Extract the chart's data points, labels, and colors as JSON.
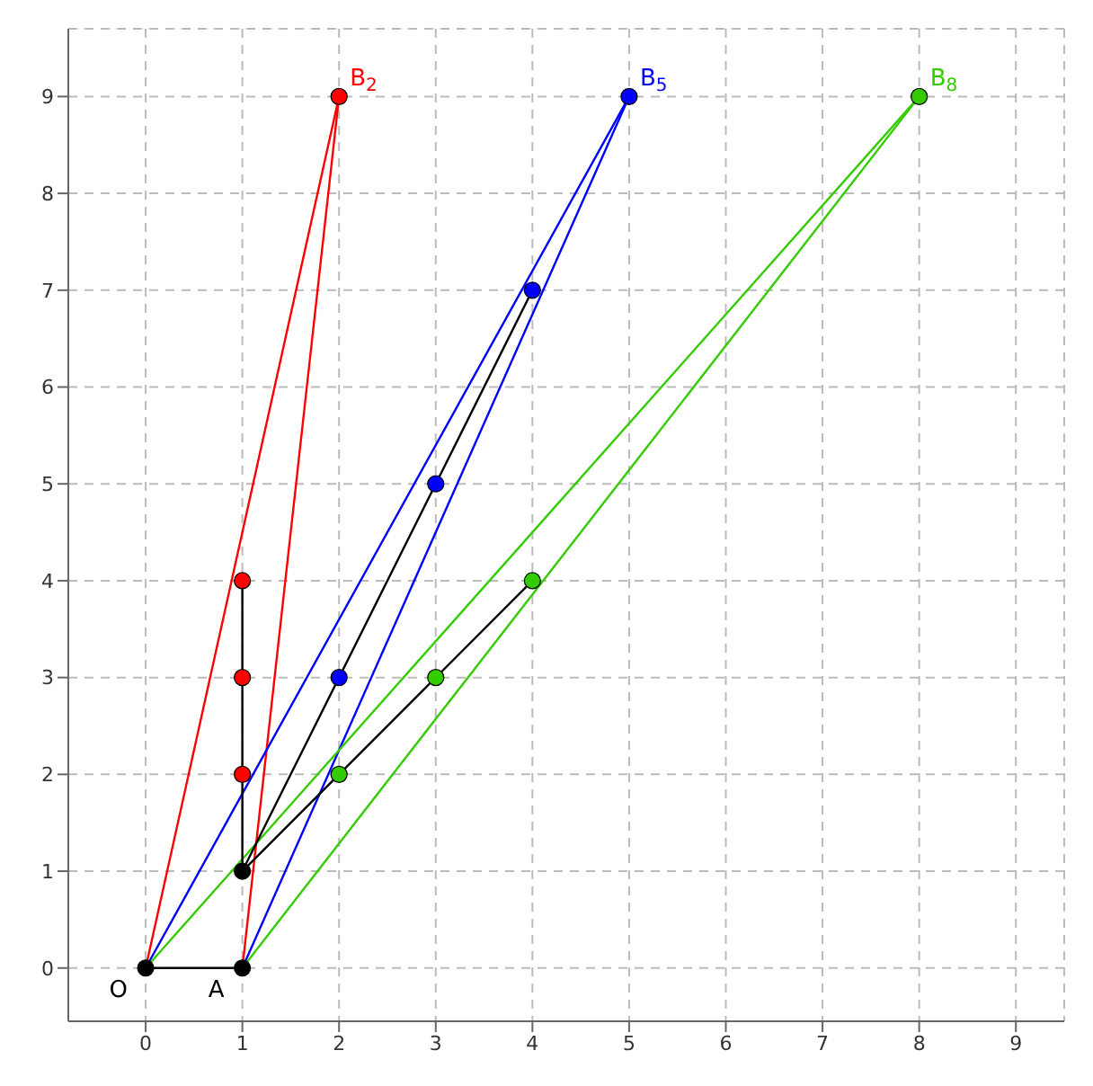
{
  "chart_data": {
    "type": "line",
    "xlim": [
      -0.8,
      9.5
    ],
    "ylim": [
      -0.55,
      9.7
    ],
    "xticks": [
      0,
      1,
      2,
      3,
      4,
      5,
      6,
      7,
      8,
      9
    ],
    "yticks": [
      0,
      1,
      2,
      3,
      4,
      5,
      6,
      7,
      8,
      9
    ],
    "grid": true,
    "marker": "circle",
    "series": [
      {
        "marker": "none",
        "color": "#ff0000",
        "x": [
          0,
          2
        ],
        "values": [
          0,
          9
        ]
      },
      {
        "marker": "none",
        "color": "#ff0000",
        "x": [
          1,
          2
        ],
        "values": [
          0,
          9
        ]
      },
      {
        "marker": "none",
        "color": "#0000ff",
        "x": [
          0,
          5
        ],
        "values": [
          0,
          9
        ]
      },
      {
        "marker": "none",
        "color": "#0000ff",
        "x": [
          1,
          5
        ],
        "values": [
          0,
          9
        ]
      },
      {
        "marker": "none",
        "color": "#33cc00",
        "x": [
          0,
          8
        ],
        "values": [
          0,
          9
        ]
      },
      {
        "marker": "none",
        "color": "#33cc00",
        "x": [
          1,
          8
        ],
        "values": [
          0,
          9
        ]
      },
      {
        "marker": "none",
        "color": "#000000",
        "x": [
          1,
          1
        ],
        "values": [
          1,
          4
        ]
      },
      {
        "marker": "none",
        "color": "#000000",
        "x": [
          1,
          4
        ],
        "values": [
          1,
          7
        ]
      },
      {
        "marker": "none",
        "color": "#000000",
        "x": [
          1,
          4
        ],
        "values": [
          1,
          4
        ]
      },
      {
        "marker": "none",
        "color": "#000000",
        "x": [
          0,
          1
        ],
        "values": [
          0,
          0
        ]
      },
      {
        "type": "scatter",
        "color": "#ff0000",
        "x": [
          1,
          1,
          1,
          2
        ],
        "values": [
          2,
          3,
          4,
          9
        ]
      },
      {
        "type": "scatter",
        "color": "#0000ff",
        "x": [
          2,
          3,
          4,
          5
        ],
        "values": [
          3,
          5,
          7,
          9
        ]
      },
      {
        "type": "scatter",
        "color": "#33cc00",
        "x": [
          2,
          3,
          4,
          8
        ],
        "values": [
          2,
          3,
          4,
          9
        ]
      },
      {
        "type": "scatter",
        "color": "#000000",
        "x": [
          0,
          1,
          1
        ],
        "values": [
          0,
          0,
          1
        ]
      }
    ],
    "annotations": [
      {
        "text": "B$_{2}$",
        "x": 2,
        "y": 9
      },
      {
        "text": "B$_{5}$",
        "x": 5,
        "y": 9
      },
      {
        "text": "B$_{8}$",
        "x": 8,
        "y": 9
      },
      {
        "text": "O",
        "x": 0,
        "y": 0
      },
      {
        "text": "A",
        "x": 1,
        "y": 0
      }
    ]
  }
}
